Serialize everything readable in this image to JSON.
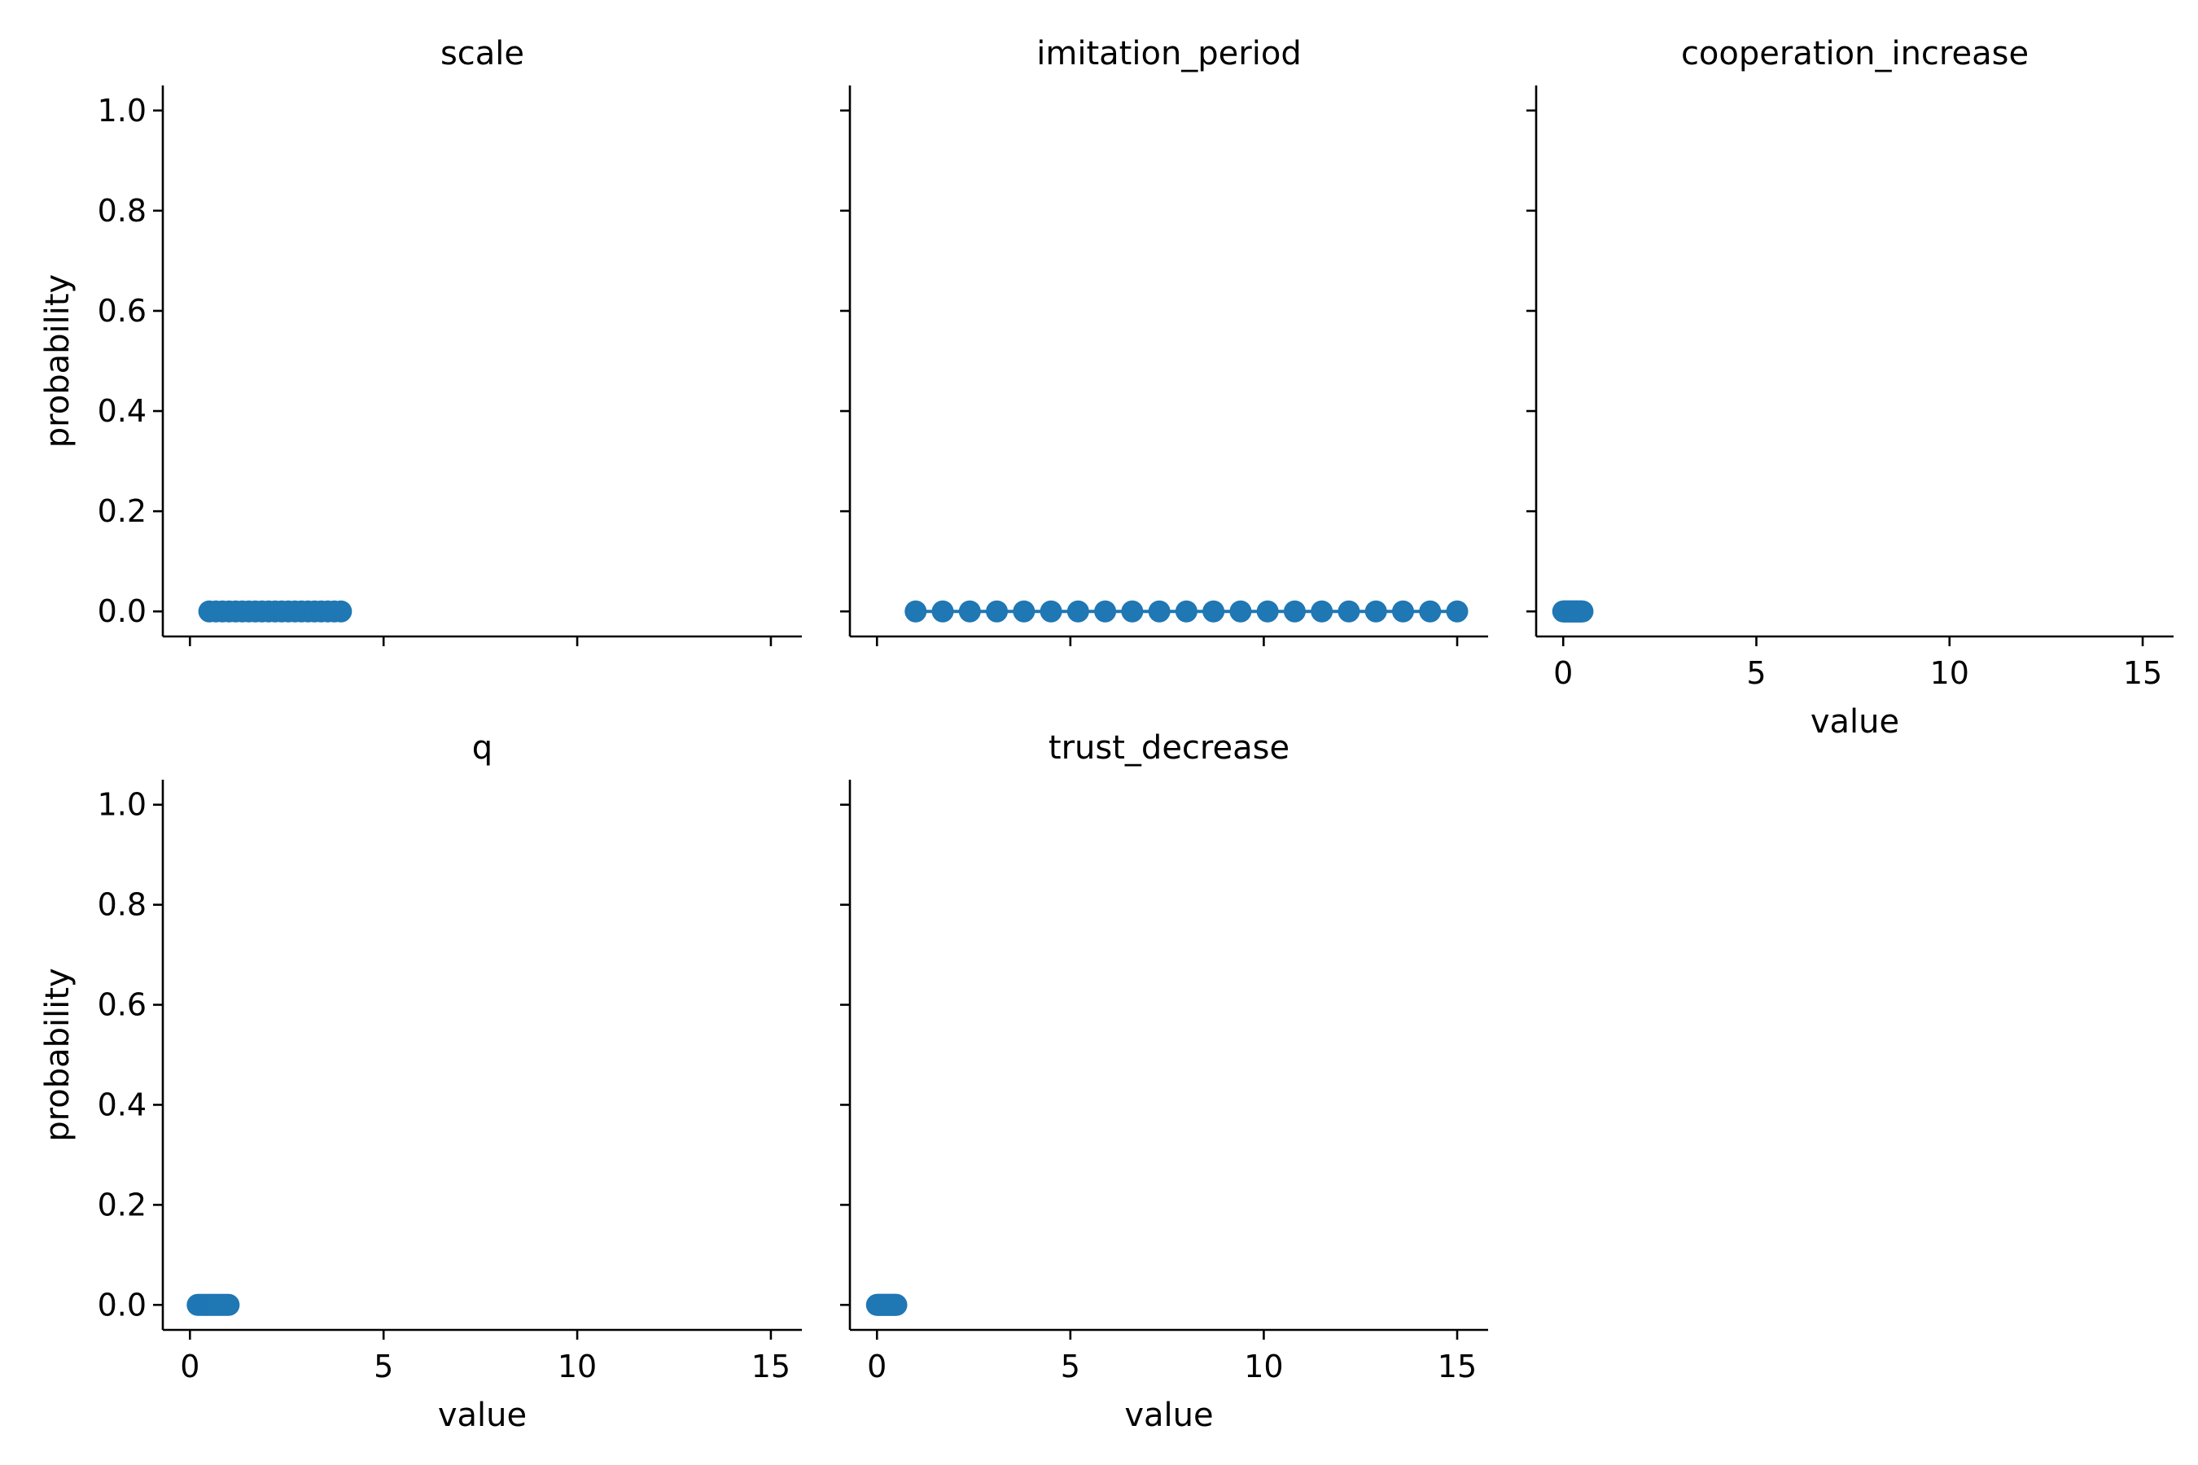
{
  "colors": {
    "series": "#1f77b4",
    "axis": "#000000",
    "background": "#ffffff"
  },
  "chart_data": [
    {
      "type": "line",
      "title": "scale",
      "xlabel": "",
      "ylabel": "probability",
      "xlim": [
        -0.7,
        15.8
      ],
      "ylim": [
        -0.05,
        1.05
      ],
      "xticks": [
        0,
        5,
        10,
        15
      ],
      "yticks": [
        0.0,
        0.2,
        0.4,
        0.6,
        0.8,
        1.0
      ],
      "x_tick_labels_shown": false,
      "y_tick_labels_shown": true,
      "marker": "circle",
      "x": [
        0.5,
        0.67,
        0.84,
        1.01,
        1.18,
        1.35,
        1.52,
        1.69,
        1.86,
        2.03,
        2.2,
        2.37,
        2.54,
        2.71,
        2.88,
        3.05,
        3.22,
        3.39,
        3.56,
        3.73,
        3.9
      ],
      "y": [
        0,
        0,
        0,
        0,
        0,
        0,
        0,
        0,
        0,
        0,
        0,
        0,
        0,
        0,
        0,
        0,
        0,
        0,
        0,
        0,
        0
      ]
    },
    {
      "type": "line",
      "title": "imitation_period",
      "xlabel": "",
      "ylabel": "",
      "xlim": [
        -0.7,
        15.8
      ],
      "ylim": [
        -0.05,
        1.05
      ],
      "xticks": [
        0,
        5,
        10,
        15
      ],
      "yticks": [
        0.0,
        0.2,
        0.4,
        0.6,
        0.8,
        1.0
      ],
      "x_tick_labels_shown": false,
      "y_tick_labels_shown": false,
      "marker": "circle",
      "x": [
        1.0,
        1.7,
        2.4,
        3.1,
        3.8,
        4.5,
        5.2,
        5.9,
        6.6,
        7.3,
        8.0,
        8.7,
        9.4,
        10.1,
        10.8,
        11.5,
        12.2,
        12.9,
        13.6,
        14.3,
        15.0
      ],
      "y": [
        0,
        0,
        0,
        0,
        0,
        0,
        0,
        0,
        0,
        0,
        0,
        0,
        0,
        0,
        0,
        0,
        0,
        0,
        0,
        0,
        0
      ]
    },
    {
      "type": "line",
      "title": "cooperation_increase",
      "xlabel": "value",
      "ylabel": "",
      "xlim": [
        -0.7,
        15.8
      ],
      "ylim": [
        -0.05,
        1.05
      ],
      "xticks": [
        0,
        5,
        10,
        15
      ],
      "yticks": [
        0.0,
        0.2,
        0.4,
        0.6,
        0.8,
        1.0
      ],
      "x_tick_labels_shown": true,
      "y_tick_labels_shown": false,
      "marker": "circle",
      "x": [
        0.0,
        0.025,
        0.05,
        0.075,
        0.1,
        0.125,
        0.15,
        0.175,
        0.2,
        0.225,
        0.25,
        0.275,
        0.3,
        0.325,
        0.35,
        0.375,
        0.4,
        0.425,
        0.45,
        0.475,
        0.5
      ],
      "y": [
        0,
        0,
        0,
        0,
        0,
        0,
        0,
        0,
        0,
        0,
        0,
        0,
        0,
        0,
        0,
        0,
        0,
        0,
        0,
        0,
        0
      ]
    },
    {
      "type": "line",
      "title": "q",
      "xlabel": "value",
      "ylabel": "probability",
      "xlim": [
        -0.7,
        15.8
      ],
      "ylim": [
        -0.05,
        1.05
      ],
      "xticks": [
        0,
        5,
        10,
        15
      ],
      "yticks": [
        0.0,
        0.2,
        0.4,
        0.6,
        0.8,
        1.0
      ],
      "x_tick_labels_shown": true,
      "y_tick_labels_shown": true,
      "marker": "circle",
      "x": [
        0.2,
        0.24,
        0.28,
        0.32,
        0.36,
        0.4,
        0.44,
        0.48,
        0.52,
        0.56,
        0.6,
        0.64,
        0.68,
        0.72,
        0.76,
        0.8,
        0.84,
        0.88,
        0.92,
        0.96,
        1.0
      ],
      "y": [
        0,
        0,
        0,
        0,
        0,
        0,
        0,
        0,
        0,
        0,
        0,
        0,
        0,
        0,
        0,
        0,
        0,
        0,
        0,
        0,
        0
      ]
    },
    {
      "type": "line",
      "title": "trust_decrease",
      "xlabel": "value",
      "ylabel": "",
      "xlim": [
        -0.7,
        15.8
      ],
      "ylim": [
        -0.05,
        1.05
      ],
      "xticks": [
        0,
        5,
        10,
        15
      ],
      "yticks": [
        0.0,
        0.2,
        0.4,
        0.6,
        0.8,
        1.0
      ],
      "x_tick_labels_shown": true,
      "y_tick_labels_shown": false,
      "marker": "circle",
      "x": [
        0.0,
        0.025,
        0.05,
        0.075,
        0.1,
        0.125,
        0.15,
        0.175,
        0.2,
        0.225,
        0.25,
        0.275,
        0.3,
        0.325,
        0.35,
        0.375,
        0.4,
        0.425,
        0.45,
        0.475,
        0.5
      ],
      "y": [
        0,
        0,
        0,
        0,
        0,
        0,
        0,
        0,
        0,
        0,
        0,
        0,
        0,
        0,
        0,
        0,
        0,
        0,
        0,
        0,
        0
      ]
    }
  ]
}
